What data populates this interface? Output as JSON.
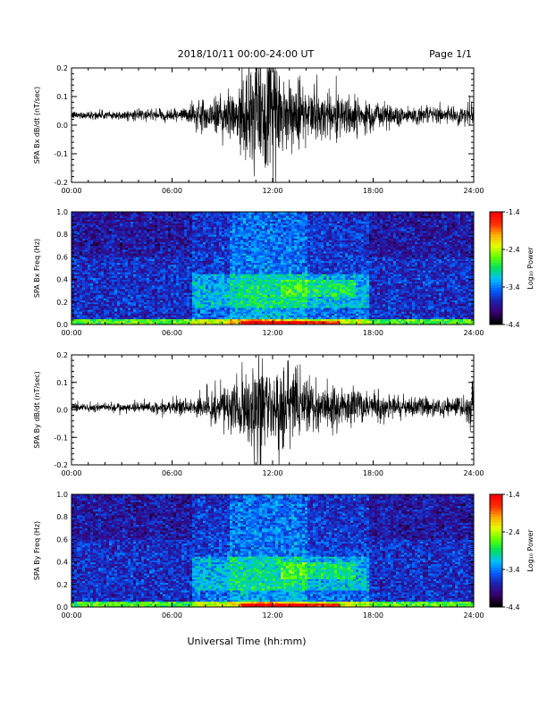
{
  "header": {
    "date_range": "2018/10/11   00:00-24:00 UT",
    "page": "Page 1/1"
  },
  "footer": {
    "xlabel": "Universal Time (hh:mm)"
  },
  "colors": {
    "trace": "#000000",
    "spectrogram_scale": [
      "#000000",
      "#3a0070",
      "#2020b0",
      "#0060ff",
      "#00c0ff",
      "#00e060",
      "#60ff00",
      "#e0ff00",
      "#ffb000",
      "#ff3000",
      "#ff0000"
    ]
  },
  "chart_data": [
    {
      "type": "line",
      "name": "bx-trace",
      "ylabel": "SPA Bx dB/dt (nT/sec)",
      "x_ticks": [
        "00:00",
        "06:00",
        "12:00",
        "18:00",
        "24:00"
      ],
      "x_range_hours": [
        0,
        24
      ],
      "ylim": [
        -0.2,
        0.2
      ],
      "y_ticks": [
        "0.2",
        "0.1",
        "0.0",
        "-0.1",
        "-0.2"
      ],
      "y_tick_values": [
        0.2,
        0.1,
        0.0,
        -0.1,
        -0.2
      ],
      "baseline": 0.035,
      "envelope_hours": [
        0,
        2,
        4,
        6,
        7,
        8,
        9,
        10,
        10.5,
        11,
        11.5,
        12,
        12.5,
        13,
        13.5,
        14,
        15,
        16,
        17,
        18,
        20,
        22,
        23.5,
        24
      ],
      "envelope_amplitude": [
        0.012,
        0.014,
        0.016,
        0.018,
        0.03,
        0.05,
        0.07,
        0.1,
        0.16,
        0.2,
        0.18,
        0.16,
        0.15,
        0.12,
        0.11,
        0.09,
        0.08,
        0.07,
        0.06,
        0.05,
        0.03,
        0.025,
        0.03,
        0.05
      ]
    },
    {
      "type": "heatmap",
      "name": "bx-spectrogram",
      "ylabel": "SPA Bx Freq (Hz)",
      "x_ticks": [
        "00:00",
        "06:00",
        "12:00",
        "18:00",
        "24:00"
      ],
      "x_range_hours": [
        0,
        24
      ],
      "ylim": [
        0.0,
        1.0
      ],
      "y_ticks": [
        "1.0",
        "0.8",
        "0.6",
        "0.4",
        "0.2",
        "0.0"
      ],
      "y_tick_values": [
        1.0,
        0.8,
        0.6,
        0.4,
        0.2,
        0.0
      ],
      "colorbar_label": "Log₁₀ Power",
      "colorbar_ticks": [
        "-1.4",
        "-2.4",
        "-3.4",
        "-4.4"
      ],
      "colorbar_tick_values": [
        -1.4,
        -2.4,
        -3.4,
        -4.4
      ],
      "color_range": [
        -4.4,
        -1.4
      ]
    },
    {
      "type": "line",
      "name": "by-trace",
      "ylabel": "SPA By dB/dt (nT/sec)",
      "x_ticks": [
        "00:00",
        "06:00",
        "12:00",
        "18:00",
        "24:00"
      ],
      "x_range_hours": [
        0,
        24
      ],
      "ylim": [
        -0.2,
        0.2
      ],
      "y_ticks": [
        "0.2",
        "0.1",
        "0.0",
        "-0.1",
        "-0.2"
      ],
      "y_tick_values": [
        0.2,
        0.1,
        0.0,
        -0.1,
        -0.2
      ],
      "baseline": 0.01,
      "envelope_hours": [
        0,
        2,
        4,
        6,
        7,
        8,
        9,
        10,
        10.5,
        11,
        11.5,
        12,
        12.5,
        13,
        13.5,
        14,
        15,
        16,
        17,
        18,
        20,
        22,
        23.5,
        24
      ],
      "envelope_amplitude": [
        0.015,
        0.015,
        0.018,
        0.022,
        0.03,
        0.045,
        0.06,
        0.09,
        0.14,
        0.18,
        0.15,
        0.12,
        0.14,
        0.13,
        0.1,
        0.085,
        0.08,
        0.07,
        0.06,
        0.05,
        0.03,
        0.028,
        0.04,
        0.1
      ]
    },
    {
      "type": "heatmap",
      "name": "by-spectrogram",
      "ylabel": "SPA By Freq (Hz)",
      "x_ticks": [
        "00:00",
        "06:00",
        "12:00",
        "18:00",
        "24:00"
      ],
      "x_range_hours": [
        0,
        24
      ],
      "ylim": [
        0.0,
        1.0
      ],
      "y_ticks": [
        "1.0",
        "0.8",
        "0.6",
        "0.4",
        "0.2",
        "0.0"
      ],
      "y_tick_values": [
        1.0,
        0.8,
        0.6,
        0.4,
        0.2,
        0.0
      ],
      "colorbar_label": "Log₁₀ Power",
      "colorbar_ticks": [
        "-1.4",
        "-2.4",
        "-3.4",
        "-4.4"
      ],
      "colorbar_tick_values": [
        -1.4,
        -2.4,
        -3.4,
        -4.4
      ],
      "color_range": [
        -4.4,
        -1.4
      ]
    }
  ]
}
